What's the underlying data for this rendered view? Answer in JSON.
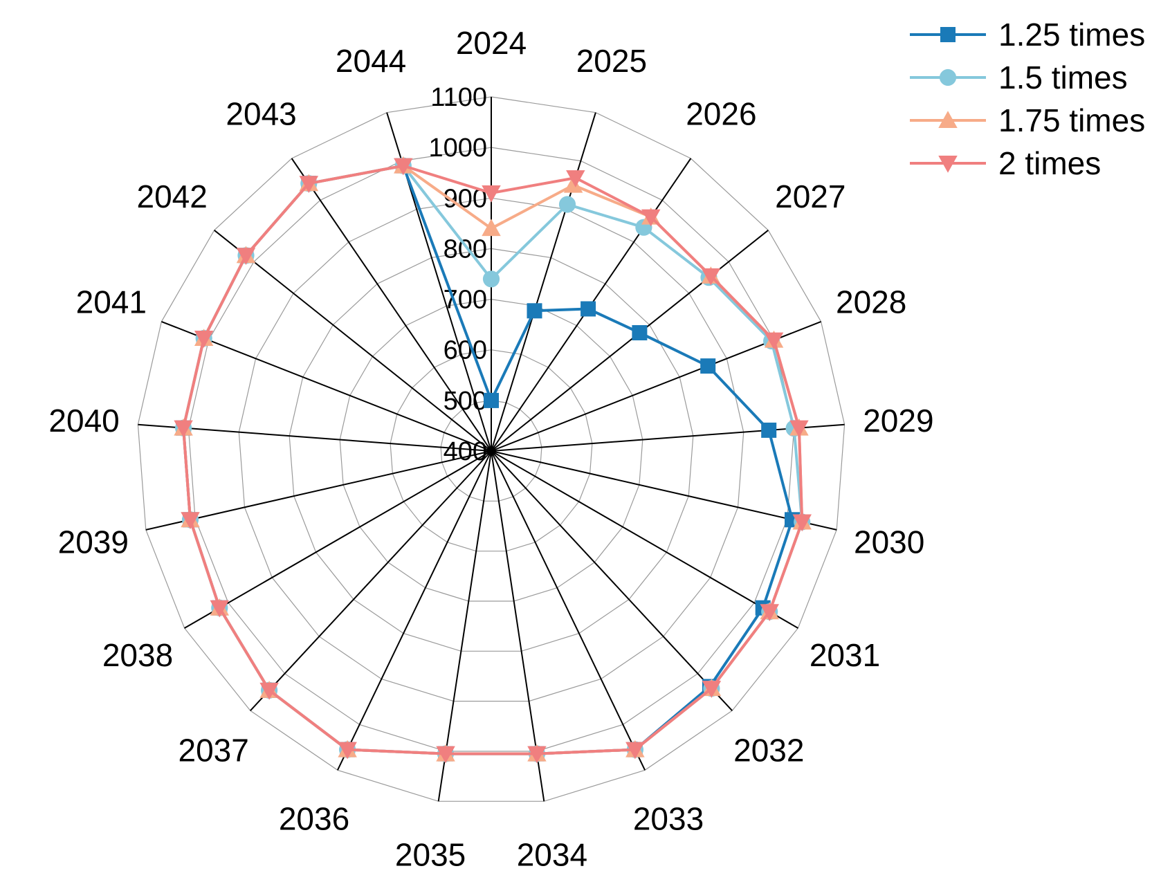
{
  "chart_data": {
    "type": "radar",
    "categories": [
      "2024",
      "2025",
      "2026",
      "2027",
      "2028",
      "2029",
      "2030",
      "2031",
      "2032",
      "2033",
      "2034",
      "2035",
      "2036",
      "2037",
      "2038",
      "2039",
      "2040",
      "2041",
      "2042",
      "2043",
      "2044"
    ],
    "radial_range": [
      400,
      1100
    ],
    "radial_ticks": [
      400,
      500,
      600,
      700,
      800,
      900,
      1000,
      1100
    ],
    "grid": true,
    "legend_position": "top-right",
    "series": [
      {
        "name": "1.25 times",
        "color": "#1a7ab8",
        "marker": "square",
        "values": [
          500,
          690,
          740,
          775,
          860,
          950,
          1010,
          1020,
          1035,
          1055,
          1005,
          1005,
          1055,
          1045,
          1020,
          1010,
          1010,
          1010,
          1020,
          1040,
          990
        ]
      },
      {
        "name": "1.5 times",
        "color": "#85c8dc",
        "marker": "circle",
        "values": [
          740,
          910,
          935,
          950,
          995,
          1000,
          1030,
          1035,
          1040,
          1055,
          1005,
          1005,
          1055,
          1045,
          1020,
          1010,
          1010,
          1010,
          1020,
          1040,
          990
        ]
      },
      {
        "name": "1.75 times",
        "color": "#f7ab88",
        "marker": "triangle-up",
        "values": [
          840,
          950,
          960,
          955,
          1000,
          1010,
          1030,
          1035,
          1040,
          1055,
          1005,
          1005,
          1055,
          1045,
          1020,
          1010,
          1010,
          1010,
          1020,
          1040,
          990
        ]
      },
      {
        "name": "2 times",
        "color": "#f07f7f",
        "marker": "triangle-down",
        "values": [
          910,
          965,
          960,
          955,
          1000,
          1010,
          1030,
          1035,
          1040,
          1055,
          1005,
          1005,
          1055,
          1045,
          1020,
          1010,
          1010,
          1010,
          1020,
          1040,
          990
        ]
      }
    ]
  }
}
